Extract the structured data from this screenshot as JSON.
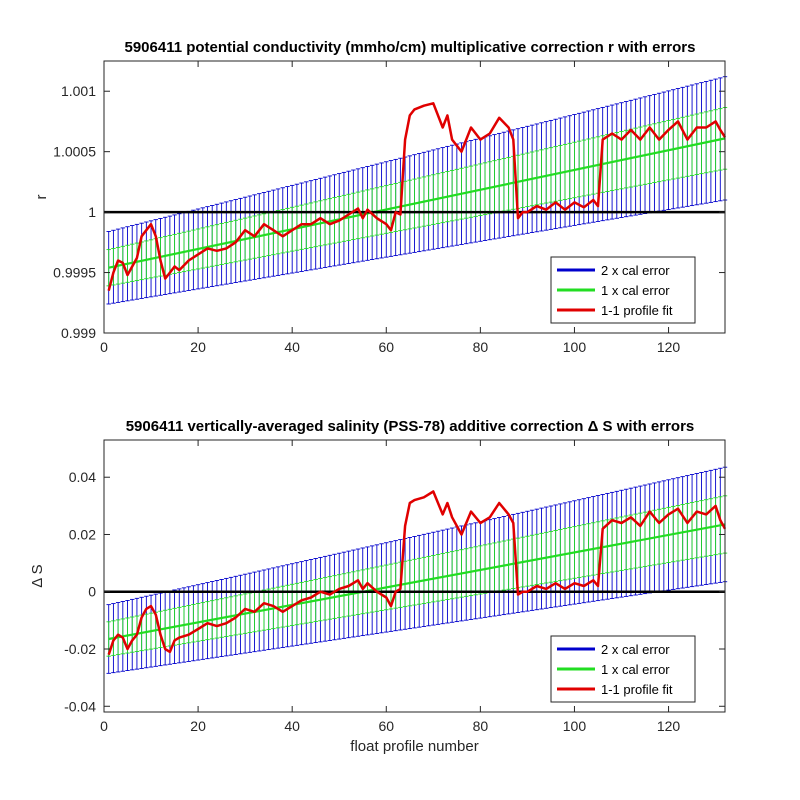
{
  "chart_data": [
    {
      "type": "line",
      "title": "5906411 potential conductivity (mmho/cm) multiplicative correction r with errors",
      "xlabel": "",
      "ylabel": "r",
      "xlim": [
        0,
        132
      ],
      "ylim": [
        0.999,
        1.00125
      ],
      "xticks": [
        0,
        20,
        40,
        60,
        80,
        100,
        120
      ],
      "yticks": [
        0.999,
        0.9995,
        1,
        1.0005,
        1.001
      ],
      "ytick_labels": [
        "0.999",
        "0.9995",
        "1",
        "1.0005",
        "1.001"
      ],
      "reference_line": 1,
      "legend_location": "bottom-right",
      "series": [
        {
          "name": "2 x cal error",
          "color": "#0000cc",
          "kind": "errorbar",
          "center_start": 0.99954,
          "center_end": 1.00061,
          "half_width_start": 0.0003,
          "half_width_end": 0.00051
        },
        {
          "name": "1 x cal error",
          "color": "#22dd22",
          "kind": "errorbar",
          "center_start": 0.99954,
          "center_end": 1.00061,
          "half_width_start": 0.00015,
          "half_width_end": 0.000255
        },
        {
          "name": "1-1 profile fit",
          "color": "#e00000",
          "kind": "line",
          "x": [
            1,
            2,
            3,
            4,
            5,
            6,
            7,
            8,
            9,
            10,
            11,
            12,
            13,
            14,
            15,
            16,
            18,
            20,
            22,
            24,
            26,
            28,
            30,
            32,
            34,
            36,
            38,
            40,
            42,
            44,
            46,
            48,
            50,
            52,
            54,
            55,
            56,
            58,
            60,
            61,
            62,
            63,
            64,
            65,
            66,
            68,
            70,
            72,
            73,
            74,
            76,
            78,
            80,
            82,
            84,
            86,
            87,
            88,
            89,
            90,
            92,
            94,
            96,
            98,
            100,
            102,
            104,
            105,
            106,
            108,
            110,
            112,
            114,
            116,
            118,
            120,
            122,
            124,
            126,
            128,
            130,
            131,
            132
          ],
          "y": [
            0.99935,
            0.9995,
            0.9996,
            0.99958,
            0.99948,
            0.99955,
            0.99962,
            0.9998,
            0.99985,
            0.9999,
            0.9998,
            0.9996,
            0.99945,
            0.9995,
            0.99955,
            0.99952,
            0.9996,
            0.99965,
            0.9997,
            0.99968,
            0.9997,
            0.99975,
            0.99985,
            0.9998,
            0.9999,
            0.99985,
            0.9998,
            0.99985,
            0.9999,
            0.9999,
            0.99995,
            0.9999,
            0.99993,
            0.99998,
            1.00003,
            0.99995,
            1.00002,
            0.99995,
            0.9999,
            0.99985,
            1.0,
            0.99998,
            1.0006,
            1.0008,
            1.00085,
            1.00088,
            1.0009,
            1.0007,
            1.0008,
            1.0006,
            1.0005,
            1.0007,
            1.0006,
            1.00065,
            1.00078,
            1.0007,
            1.0006,
            0.99995,
            1.0,
            1.0,
            1.00005,
            1.00002,
            1.00008,
            1.00002,
            1.00008,
            1.00004,
            1.0001,
            1.00005,
            1.0006,
            1.00065,
            1.0006,
            1.00068,
            1.0006,
            1.0007,
            1.0006,
            1.00068,
            1.00075,
            1.0006,
            1.0007,
            1.0007,
            1.00075,
            1.00068,
            1.00062
          ]
        }
      ]
    },
    {
      "type": "line",
      "title": "5906411 vertically-averaged salinity (PSS-78) additive correction Δ S with errors",
      "xlabel": "float profile number",
      "ylabel": "Δ S",
      "xlim": [
        0,
        132
      ],
      "ylim": [
        -0.042,
        0.053
      ],
      "xticks": [
        0,
        20,
        40,
        60,
        80,
        100,
        120
      ],
      "yticks": [
        -0.04,
        -0.02,
        0,
        0.02,
        0.04
      ],
      "ytick_labels": [
        "-0.04",
        "-0.02",
        "0",
        "0.02",
        "0.04"
      ],
      "reference_line": 0,
      "legend_location": "bottom-right",
      "series": [
        {
          "name": "2 x cal error",
          "color": "#0000cc",
          "kind": "errorbar",
          "center_start": -0.0165,
          "center_end": 0.0235,
          "half_width_start": 0.012,
          "half_width_end": 0.02
        },
        {
          "name": "1 x cal error",
          "color": "#22dd22",
          "kind": "errorbar",
          "center_start": -0.0165,
          "center_end": 0.0235,
          "half_width_start": 0.006,
          "half_width_end": 0.01
        },
        {
          "name": "1-1 profile fit",
          "color": "#e00000",
          "kind": "line",
          "x": [
            1,
            2,
            3,
            4,
            5,
            6,
            7,
            8,
            9,
            10,
            11,
            12,
            13,
            14,
            15,
            16,
            18,
            20,
            22,
            24,
            26,
            28,
            30,
            32,
            34,
            36,
            38,
            40,
            42,
            44,
            46,
            48,
            50,
            52,
            54,
            55,
            56,
            58,
            60,
            61,
            62,
            63,
            64,
            65,
            66,
            68,
            70,
            72,
            73,
            74,
            76,
            78,
            80,
            82,
            84,
            86,
            87,
            88,
            89,
            90,
            92,
            94,
            96,
            98,
            100,
            102,
            104,
            105,
            106,
            108,
            110,
            112,
            114,
            116,
            118,
            120,
            122,
            124,
            126,
            128,
            130,
            131,
            132
          ],
          "y": [
            -0.022,
            -0.017,
            -0.015,
            -0.016,
            -0.02,
            -0.017,
            -0.015,
            -0.009,
            -0.006,
            -0.005,
            -0.008,
            -0.015,
            -0.02,
            -0.021,
            -0.017,
            -0.016,
            -0.015,
            -0.013,
            -0.011,
            -0.012,
            -0.011,
            -0.009,
            -0.006,
            -0.007,
            -0.004,
            -0.005,
            -0.007,
            -0.005,
            -0.003,
            -0.002,
            0.0,
            -0.001,
            0.001,
            0.002,
            0.004,
            0.001,
            0.003,
            0.0,
            -0.002,
            -0.005,
            0.0,
            0.001,
            0.023,
            0.031,
            0.032,
            0.033,
            0.035,
            0.027,
            0.031,
            0.026,
            0.02,
            0.028,
            0.024,
            0.026,
            0.031,
            0.027,
            0.024,
            -0.001,
            0.0,
            0.0,
            0.002,
            0.001,
            0.003,
            0.001,
            0.003,
            0.002,
            0.004,
            0.002,
            0.022,
            0.025,
            0.024,
            0.026,
            0.023,
            0.028,
            0.024,
            0.027,
            0.029,
            0.024,
            0.028,
            0.027,
            0.03,
            0.025,
            0.022
          ]
        }
      ]
    }
  ]
}
